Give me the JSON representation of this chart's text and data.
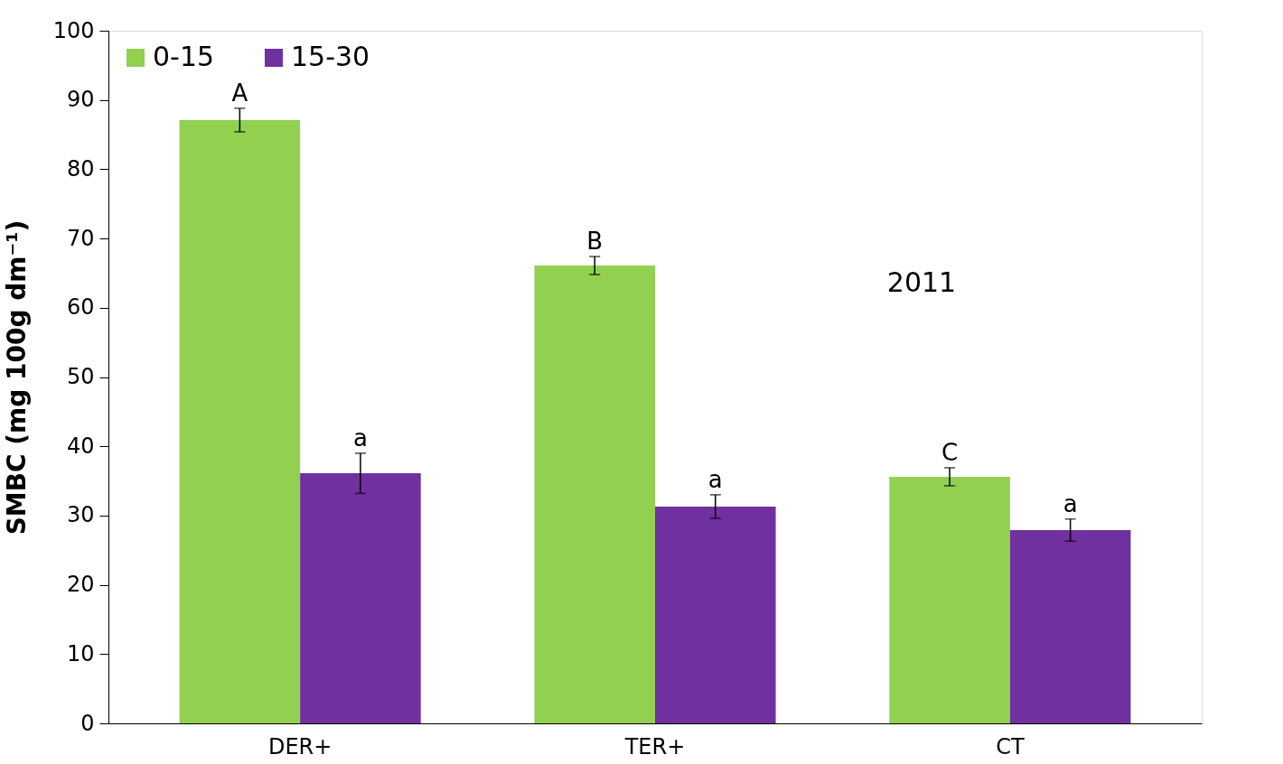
{
  "chart_data": {
    "type": "bar",
    "ylabel": "SMBC (mg 100g dm⁻¹)",
    "categories": [
      "DER+",
      "TER+",
      "CT"
    ],
    "series": [
      {
        "name": "0-15",
        "color": "#92d050",
        "values": [
          87.1,
          66.1,
          35.6
        ],
        "errors": [
          1.7,
          1.3,
          1.3
        ],
        "value_labels": [
          "A",
          "B",
          "C"
        ]
      },
      {
        "name": "15-30",
        "color": "#7030a0",
        "values": [
          36.1,
          31.3,
          27.9
        ],
        "errors": [
          2.9,
          1.7,
          1.6
        ],
        "value_labels": [
          "a",
          "a",
          "a"
        ]
      }
    ],
    "ylim": [
      0,
      100
    ],
    "yticks": [
      0,
      10,
      20,
      30,
      40,
      50,
      60,
      70,
      80,
      90,
      100
    ],
    "annotations": [
      {
        "text": "2011"
      }
    ],
    "legend": "top left",
    "grid": false
  }
}
